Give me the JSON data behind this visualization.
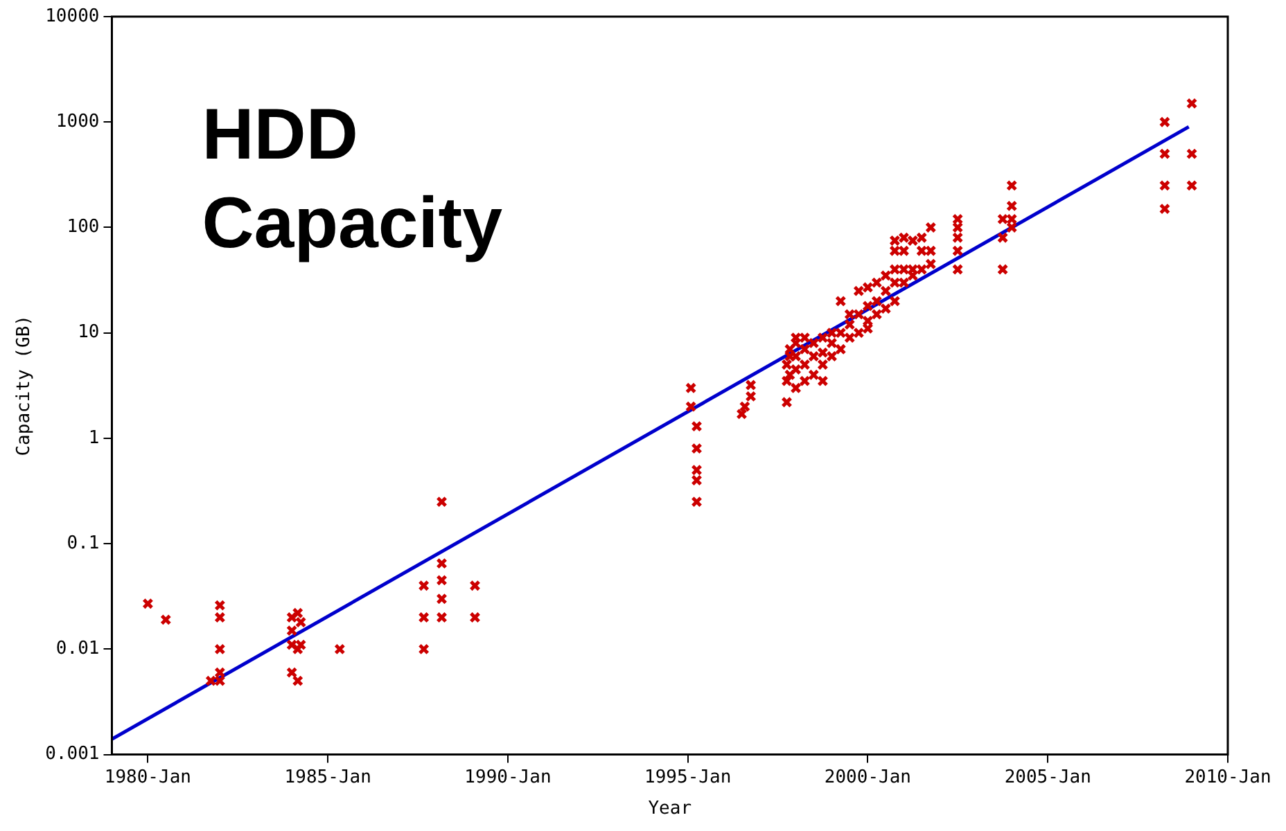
{
  "chart_data": {
    "type": "scatter",
    "title": "HDD Capacity",
    "xlabel": "Year",
    "ylabel": "Capacity (GB)",
    "log": "y",
    "grid": false,
    "legend": false,
    "xlim": [
      "1979-01",
      "2010-01"
    ],
    "xticks": [
      {
        "value": "1980-01",
        "label": "1980-Jan"
      },
      {
        "value": "1985-01",
        "label": "1985-Jan"
      },
      {
        "value": "1990-01",
        "label": "1990-Jan"
      },
      {
        "value": "1995-01",
        "label": "1995-Jan"
      },
      {
        "value": "2000-01",
        "label": "2000-Jan"
      },
      {
        "value": "2005-01",
        "label": "2005-Jan"
      },
      {
        "value": "2010-01",
        "label": "2010-Jan"
      }
    ],
    "ylim": [
      0.001,
      10000
    ],
    "yticks": [
      0.001,
      0.01,
      0.1,
      1,
      10,
      100,
      1000,
      10000
    ],
    "series": [
      {
        "color": "#cc0000",
        "marker": "cross",
        "x": [
          "1980-01",
          "1980-07",
          "1982-01",
          "1982-01",
          "1982-01",
          "1982-01",
          "1982-01",
          "1981-10",
          "1984-01",
          "1984-01",
          "1984-01",
          "1984-01",
          "1984-03",
          "1984-03",
          "1984-03",
          "1984-04",
          "1984-04",
          "1985-05",
          "1987-09",
          "1987-09",
          "1987-09",
          "1988-03",
          "1988-03",
          "1988-03",
          "1988-03",
          "1988-03",
          "1989-02",
          "1989-02",
          "1995-02",
          "1995-02",
          "1995-04",
          "1995-04",
          "1995-04",
          "1995-04",
          "1995-04",
          "1996-07",
          "1996-08",
          "1996-10",
          "1996-10",
          "1997-10",
          "1997-10",
          "1997-10",
          "1997-11",
          "1997-11",
          "1997-11",
          "1998-01",
          "1998-01",
          "1998-01",
          "1998-01",
          "1998-01",
          "1998-04",
          "1998-04",
          "1998-04",
          "1998-04",
          "1998-07",
          "1998-07",
          "1998-07",
          "1998-10",
          "1998-10",
          "1998-10",
          "1998-10",
          "1999-01",
          "1999-01",
          "1999-01",
          "1999-04",
          "1999-04",
          "1999-04",
          "1999-07",
          "1999-07",
          "1999-07",
          "1999-10",
          "1999-10",
          "1999-10",
          "2000-01",
          "2000-01",
          "2000-01",
          "2000-01",
          "2000-04",
          "2000-04",
          "2000-04",
          "2000-07",
          "2000-07",
          "2000-07",
          "2000-10",
          "2000-10",
          "2000-10",
          "2000-10",
          "2000-10",
          "2001-01",
          "2001-01",
          "2001-01",
          "2001-01",
          "2001-04",
          "2001-04",
          "2001-04",
          "2001-07",
          "2001-07",
          "2001-07",
          "2001-10",
          "2001-10",
          "2001-10",
          "2002-07",
          "2002-07",
          "2002-07",
          "2002-07",
          "2002-07",
          "2003-10",
          "2003-10",
          "2003-10",
          "2004-01",
          "2004-01",
          "2004-01",
          "2004-01",
          "2008-04",
          "2008-04",
          "2008-04",
          "2008-04",
          "2009-01",
          "2009-01",
          "2009-01"
        ],
        "values": [
          0.027,
          0.019,
          0.026,
          0.02,
          0.01,
          0.006,
          0.005,
          0.005,
          0.02,
          0.015,
          0.011,
          0.006,
          0.022,
          0.01,
          0.005,
          0.018,
          0.011,
          0.01,
          0.04,
          0.02,
          0.01,
          0.25,
          0.065,
          0.045,
          0.03,
          0.02,
          0.04,
          0.02,
          3,
          2,
          1.3,
          0.8,
          0.5,
          0.4,
          0.25,
          1.7,
          2,
          2.5,
          3.2,
          2.2,
          3.5,
          5,
          4,
          6,
          7,
          3,
          4.5,
          6,
          8,
          9,
          3.5,
          5,
          7,
          9,
          4,
          6,
          8,
          3.5,
          5,
          6.5,
          9,
          6,
          8,
          10,
          7,
          10,
          20,
          9,
          12,
          15,
          10,
          15,
          25,
          11,
          13,
          18,
          27,
          15,
          20,
          30,
          17,
          25,
          35,
          20,
          30,
          40,
          60,
          75,
          30,
          40,
          60,
          80,
          35,
          40,
          75,
          40,
          60,
          80,
          45,
          60,
          100,
          40,
          60,
          80,
          100,
          120,
          40,
          80,
          120,
          100,
          120,
          160,
          250,
          1000,
          500,
          250,
          150,
          1500,
          500,
          250
        ]
      },
      {
        "type": "line",
        "color": "#0000cc",
        "marker": "none",
        "x": [
          "1979-01",
          "2008-12"
        ],
        "values": [
          0.0014,
          900
        ]
      }
    ]
  }
}
